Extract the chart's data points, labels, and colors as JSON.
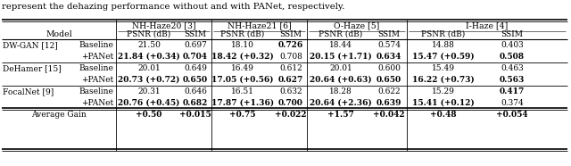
{
  "text_above": "represent the dehazing performance without and with PANet, respectively.",
  "col_headers_top": [
    "NH-Haze20 [3]",
    "NH-Haze21 [6]",
    "O-Haze [5]",
    "I-Haze [4]"
  ],
  "col_headers_sub": [
    "PSNR (dB)",
    "SSIM",
    "PSNR (dB)",
    "SSIM",
    "PSNR (dB)",
    "SSIM",
    "PSNR (dB)",
    "SSIM"
  ],
  "model_col": "Model",
  "rows": [
    {
      "model": "DW-GAN [12]",
      "type": "Baseline",
      "values": [
        "21.50",
        "0.697",
        "18.10",
        "0.726",
        "18.44",
        "0.574",
        "14.88",
        "0.403"
      ],
      "bold": [
        false,
        false,
        false,
        true,
        false,
        false,
        false,
        false
      ]
    },
    {
      "model": "",
      "type": "+PANet",
      "values": [
        "21.84 (+0.34)",
        "0.704",
        "18.42 (+0.32)",
        "0.708",
        "20.15 (+1.71)",
        "0.634",
        "15.47 (+0.59)",
        "0.508"
      ],
      "bold": [
        true,
        true,
        true,
        false,
        true,
        true,
        true,
        true
      ]
    },
    {
      "model": "DeHamer [15]",
      "type": "Baseline",
      "values": [
        "20.01",
        "0.649",
        "16.49",
        "0.612",
        "20.01",
        "0.600",
        "15.49",
        "0.463"
      ],
      "bold": [
        false,
        false,
        false,
        false,
        false,
        false,
        false,
        false
      ]
    },
    {
      "model": "",
      "type": "+PANet",
      "values": [
        "20.73 (+0.72)",
        "0.650",
        "17.05 (+0.56)",
        "0.627",
        "20.64 (+0.63)",
        "0.650",
        "16.22 (+0.73)",
        "0.563"
      ],
      "bold": [
        true,
        true,
        true,
        true,
        true,
        true,
        true,
        true
      ]
    },
    {
      "model": "FocalNet [9]",
      "type": "Baseline",
      "values": [
        "20.31",
        "0.646",
        "16.51",
        "0.632",
        "18.28",
        "0.622",
        "15.29",
        "0.417"
      ],
      "bold": [
        false,
        false,
        false,
        false,
        false,
        false,
        false,
        true
      ]
    },
    {
      "model": "",
      "type": "+PANet",
      "values": [
        "20.76 (+0.45)",
        "0.682",
        "17.87 (+1.36)",
        "0.700",
        "20.64 (+2.36)",
        "0.639",
        "15.41 (+0.12)",
        "0.374"
      ],
      "bold": [
        true,
        true,
        true,
        true,
        true,
        true,
        true,
        false
      ]
    }
  ],
  "avg_row": {
    "label": "Average Gain",
    "values": [
      "+0.50",
      "+0.015",
      "+0.75",
      "+0.022",
      "+1.57",
      "+0.042",
      "+0.48",
      "+0.054"
    ],
    "bold": [
      true,
      true,
      true,
      true,
      true,
      true,
      true,
      true
    ]
  },
  "bg_color": "#ffffff",
  "text_color": "#000000"
}
